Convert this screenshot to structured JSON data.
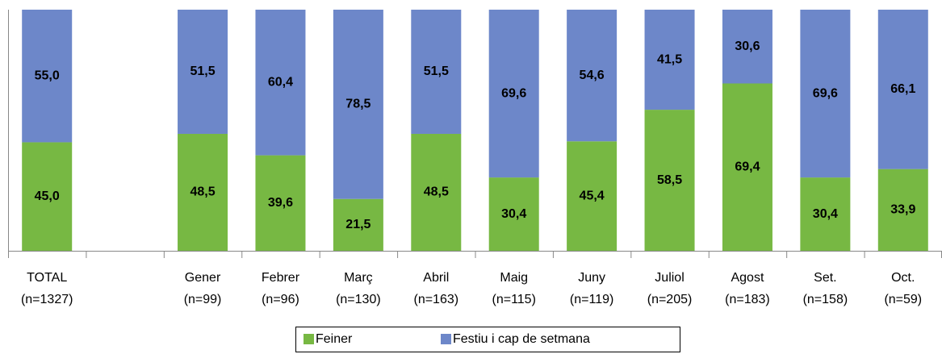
{
  "chart_data": {
    "type": "stacked_bar",
    "categories": [
      "TOTAL",
      null,
      "Gener",
      "Febrer",
      "Març",
      "Abril",
      "Maig",
      "Juny",
      "Juliol",
      "Agost",
      "Set.",
      "Oct."
    ],
    "category_counts": [
      "(n=1327)",
      null,
      "(n=99)",
      "(n=96)",
      "(n=130)",
      "(n=163)",
      "(n=115)",
      "(n=119)",
      "(n=205)",
      "(n=183)",
      "(n=158)",
      "(n=59)"
    ],
    "series": [
      {
        "name": "Feiner",
        "color": "#77b843",
        "values": [
          45.0,
          null,
          48.5,
          39.6,
          21.5,
          48.5,
          30.4,
          45.4,
          58.5,
          69.4,
          30.4,
          33.9
        ],
        "value_labels": [
          "45,0",
          null,
          "48,5",
          "39,6",
          "21,5",
          "48,5",
          "30,4",
          "45,4",
          "58,5",
          "69,4",
          "30,4",
          "33,9"
        ]
      },
      {
        "name": "Festiu i cap de setmana",
        "color": "#6d87c9",
        "values": [
          55.0,
          null,
          51.5,
          60.4,
          78.5,
          51.5,
          69.6,
          54.6,
          41.5,
          30.6,
          69.6,
          66.1
        ],
        "value_labels": [
          "55,0",
          null,
          "51,5",
          "60,4",
          "78,5",
          "51,5",
          "69,6",
          "54,6",
          "41,5",
          "30,6",
          "69,6",
          "66,1"
        ]
      }
    ],
    "ylim": [
      0,
      100
    ],
    "legend": "bottom"
  }
}
